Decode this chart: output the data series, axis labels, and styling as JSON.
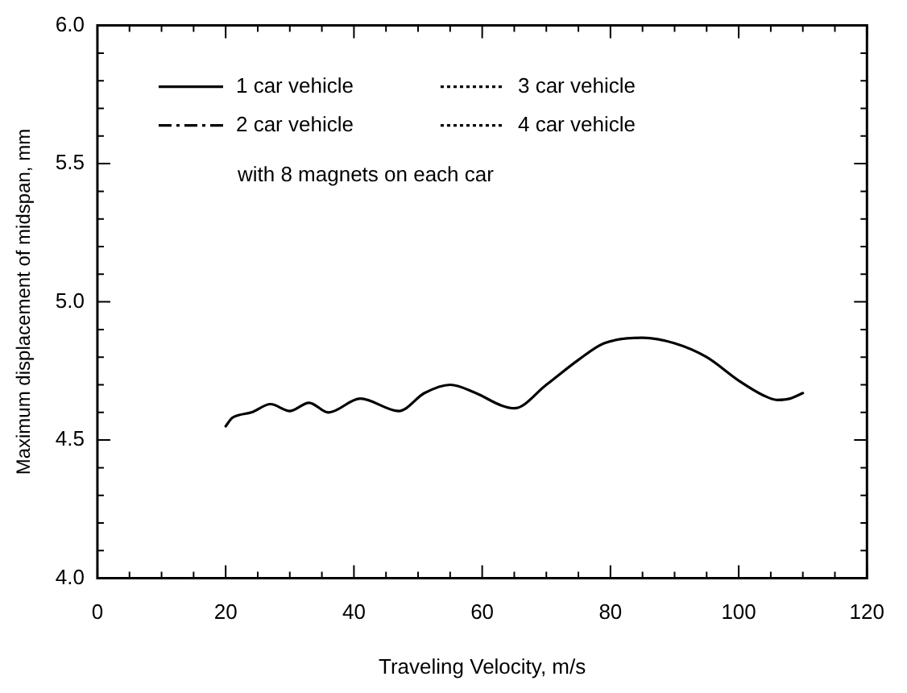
{
  "chart_data": {
    "type": "line",
    "xlabel": "Traveling Velocity, m/s",
    "ylabel": "Maximum displacement of midspan, mm",
    "x": [
      20,
      21,
      22,
      24,
      27,
      30,
      33,
      36,
      41,
      47,
      51,
      55,
      59,
      63,
      65,
      70,
      75,
      79,
      85,
      90,
      95,
      100,
      104,
      106,
      108,
      110
    ],
    "series": [
      {
        "name": "1 car vehicle",
        "color": "#000000",
        "line_style": "solid",
        "values": [
          4.55,
          4.58,
          4.59,
          4.6,
          4.63,
          4.605,
          4.635,
          4.6,
          4.65,
          4.605,
          4.67,
          4.7,
          4.67,
          4.625,
          4.615,
          4.7,
          4.79,
          4.85,
          4.87,
          4.85,
          4.8,
          4.715,
          4.66,
          4.645,
          4.65,
          4.67
        ]
      },
      {
        "name": "2 car vehicle",
        "color": "#000000",
        "line_style": "dashed",
        "values": [
          null,
          null,
          null,
          null,
          null,
          null,
          null,
          null,
          null,
          null,
          null,
          null,
          null,
          null,
          null,
          null,
          null,
          null,
          null,
          null,
          null,
          null,
          null,
          null,
          null,
          null
        ]
      },
      {
        "name": "3 car vehicle",
        "color": "#000000",
        "line_style": "dotted",
        "values": [
          null,
          null,
          null,
          null,
          null,
          null,
          null,
          null,
          null,
          null,
          null,
          null,
          null,
          null,
          null,
          null,
          null,
          null,
          null,
          null,
          null,
          null,
          null,
          null,
          null,
          null
        ]
      },
      {
        "name": "4 car vehicle",
        "color": "#000000",
        "line_style": "dotted",
        "values": [
          null,
          null,
          null,
          null,
          null,
          null,
          null,
          null,
          null,
          null,
          null,
          null,
          null,
          null,
          null,
          null,
          null,
          null,
          null,
          null,
          null,
          null,
          null,
          null,
          null,
          null
        ]
      }
    ],
    "xlim": [
      0,
      120
    ],
    "xticks": [
      0,
      {
        "value": 5,
        "label": null
      },
      {
        "value": 10,
        "label": null
      },
      {
        "value": 15,
        "label": null
      },
      20,
      {
        "value": 25,
        "label": null
      },
      {
        "value": 30,
        "label": null
      },
      {
        "value": 35,
        "label": null
      },
      40,
      {
        "value": 45,
        "label": null
      },
      {
        "value": 50,
        "label": null
      },
      {
        "value": 55,
        "label": null
      },
      60,
      {
        "value": 65,
        "label": null
      },
      {
        "value": 70,
        "label": null
      },
      {
        "value": 75,
        "label": null
      },
      80,
      {
        "value": 85,
        "label": null
      },
      {
        "value": 90,
        "label": null
      },
      {
        "value": 95,
        "label": null
      },
      100,
      {
        "value": 105,
        "label": null
      },
      {
        "value": 110,
        "label": null
      },
      {
        "value": 115,
        "label": null
      },
      120
    ],
    "ylim": [
      4,
      6
    ],
    "yticks": [
      {
        "value": 4,
        "label": "4.0"
      },
      {
        "value": 4.1,
        "label": null
      },
      {
        "value": 4.2,
        "label": null
      },
      {
        "value": 4.3,
        "label": null
      },
      {
        "value": 4.4,
        "label": null
      },
      {
        "value": 4.5,
        "label": "4.5"
      },
      {
        "value": 4.6,
        "label": null
      },
      {
        "value": 4.7,
        "label": null
      },
      {
        "value": 4.8,
        "label": null
      },
      {
        "value": 4.9,
        "label": null
      },
      {
        "value": 5,
        "label": "5.0"
      },
      {
        "value": 5.1,
        "label": null
      },
      {
        "value": 5.2,
        "label": null
      },
      {
        "value": 5.3,
        "label": null
      },
      {
        "value": 5.4,
        "label": null
      },
      {
        "value": 5.5,
        "label": "5.5"
      },
      {
        "value": 5.6,
        "label": null
      },
      {
        "value": 5.7,
        "label": null
      },
      {
        "value": 5.8,
        "label": null
      },
      {
        "value": 5.9,
        "label": null
      },
      {
        "value": 6,
        "label": "6.0"
      }
    ],
    "grid": false,
    "legend": "top",
    "marker": "none",
    "annotations": [
      "with 8 magnets on each car"
    ]
  }
}
